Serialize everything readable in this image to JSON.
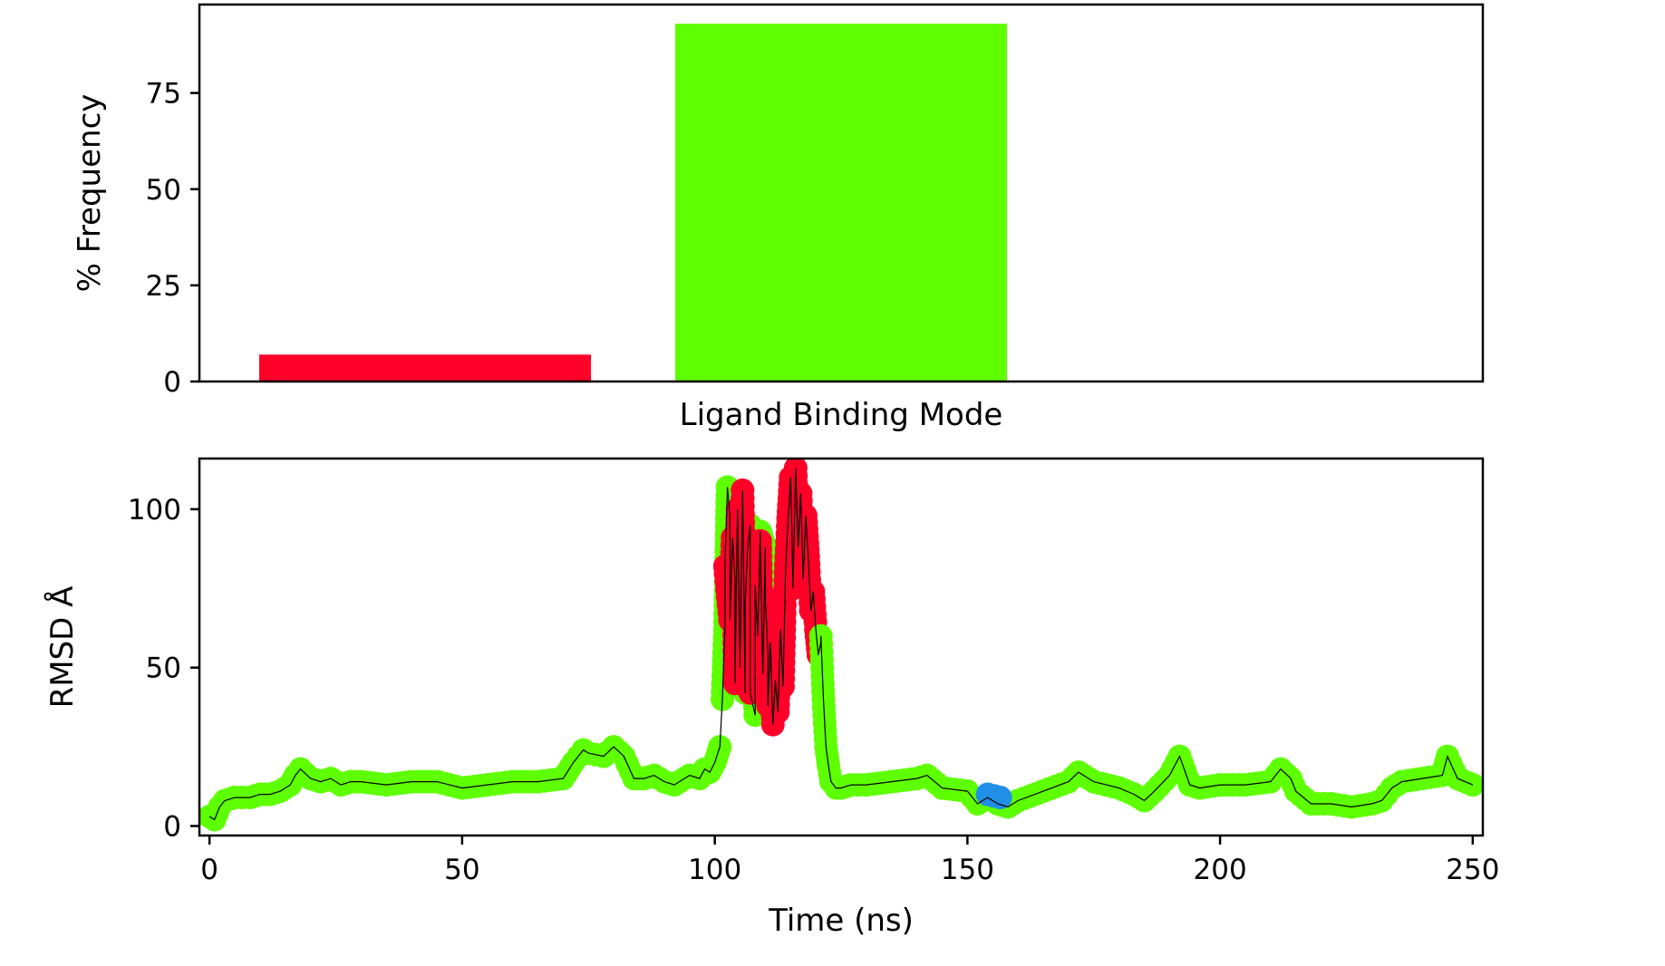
{
  "colors": {
    "mode_red": "#ff0028",
    "mode_green": "#5eff00",
    "mode_blue": "#1f8fe8",
    "trace": "#000000",
    "axes": "#000000"
  },
  "chart_data": [
    {
      "type": "bar",
      "categories": [
        "",
        ""
      ],
      "values": [
        7,
        93
      ],
      "colors": [
        "#ff0028",
        "#5eff00"
      ],
      "title": "",
      "xlabel": "Ligand Binding Mode",
      "ylabel": "% Frequency",
      "ylim": [
        0,
        98
      ],
      "yticks": [
        0,
        25,
        50,
        75
      ],
      "grid": false
    },
    {
      "type": "scatter",
      "title": "",
      "xlabel": "Time (ns)",
      "ylabel": "RMSD Å",
      "xlim": [
        -2,
        252
      ],
      "ylim": [
        -3,
        116
      ],
      "xticks": [
        0,
        50,
        100,
        150,
        200,
        250
      ],
      "yticks": [
        0,
        50,
        100
      ],
      "grid": false,
      "line_color": "#000000",
      "marker_colors": {
        "green": "#5eff00",
        "red": "#ff0028",
        "blue": "#1f8fe8"
      },
      "segments": [
        {
          "t": [
            0,
            1,
            2,
            3,
            5
          ],
          "rmsd": [
            3,
            2,
            6,
            8,
            9
          ],
          "mode": "green"
        },
        {
          "t": [
            5,
            8,
            10,
            12,
            14,
            16,
            17,
            18,
            20,
            22,
            24,
            26,
            28,
            30,
            35,
            40,
            45,
            50,
            55,
            60,
            65,
            70,
            72,
            74,
            75,
            78,
            80,
            82,
            84,
            86,
            88,
            90,
            92,
            95,
            97,
            98,
            99,
            100,
            101
          ],
          "rmsd": [
            9,
            9,
            10,
            10,
            11,
            13,
            16,
            18,
            15,
            14,
            15,
            13,
            14,
            14,
            13,
            14,
            14,
            12,
            13,
            14,
            14,
            15,
            20,
            24,
            23,
            22,
            25,
            22,
            15,
            15,
            16,
            14,
            13,
            16,
            15,
            18,
            17,
            20,
            25
          ],
          "mode": "green"
        },
        {
          "t": [
            101.5,
            102,
            102.5,
            103,
            104,
            105,
            106,
            107,
            108,
            109,
            110,
            110.5
          ],
          "rmsd": [
            40,
            62,
            107,
            98,
            78,
            50,
            42,
            95,
            35,
            93,
            88,
            55
          ],
          "mode": "green"
        },
        {
          "t": [
            102,
            103,
            103.5,
            104,
            104.5,
            105,
            105.5,
            106,
            106.5,
            107,
            108,
            108.5,
            109,
            109.5,
            110,
            110.5,
            111,
            111.5,
            112,
            112.5,
            113,
            113.5,
            114,
            114.5,
            115,
            115.5,
            116,
            116.5,
            117,
            117.5,
            118,
            118.5,
            119,
            119.5,
            120,
            120.5,
            121
          ],
          "rmsd": [
            82,
            65,
            91,
            45,
            100,
            52,
            106,
            70,
            88,
            42,
            76,
            60,
            90,
            48,
            72,
            38,
            58,
            32,
            46,
            36,
            62,
            44,
            80,
            97,
            110,
            75,
            113,
            88,
            105,
            78,
            98,
            85,
            68,
            74,
            62,
            54,
            58
          ],
          "mode": "red"
        },
        {
          "t": [
            121,
            121.5,
            122,
            122.5,
            123,
            124,
            125,
            127,
            130,
            135,
            140,
            142,
            145,
            150,
            152,
            154,
            156,
            158,
            160,
            165,
            170,
            172,
            175,
            180,
            183,
            185,
            187,
            190,
            192,
            194,
            196,
            200,
            205,
            210,
            212,
            214,
            215,
            218,
            222,
            226,
            230,
            232,
            234,
            236,
            240,
            244,
            245,
            247,
            250
          ],
          "rmsd": [
            60,
            40,
            25,
            19,
            14,
            12,
            12,
            13,
            13,
            14,
            15,
            16,
            12,
            11,
            7,
            9,
            7,
            6,
            8,
            11,
            14,
            17,
            14,
            12,
            10,
            8,
            11,
            16,
            22,
            13,
            12,
            13,
            13,
            14,
            18,
            15,
            11,
            7,
            7,
            6,
            7,
            8,
            12,
            14,
            15,
            16,
            22,
            15,
            13
          ],
          "mode": "green"
        },
        {
          "t": [
            154,
            156.5
          ],
          "rmsd": [
            10,
            9
          ],
          "mode": "blue"
        }
      ]
    }
  ]
}
